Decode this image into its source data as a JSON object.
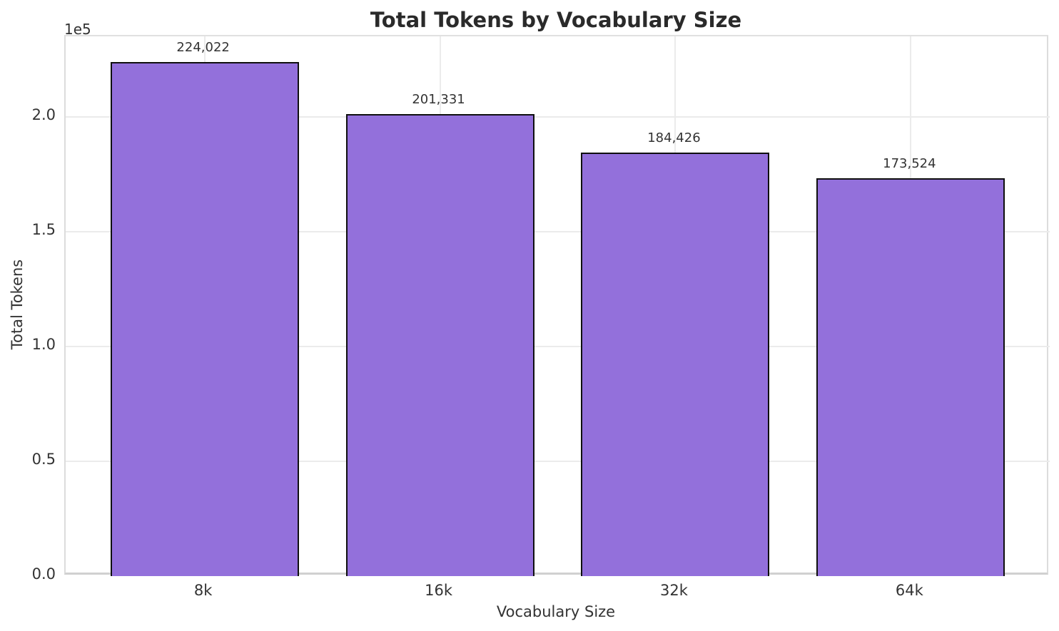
{
  "chart_data": {
    "type": "bar",
    "title": "Total Tokens by Vocabulary Size",
    "xlabel": "Vocabulary Size",
    "ylabel": "Total Tokens",
    "y_offset_label": "1e5",
    "categories": [
      "8k",
      "16k",
      "32k",
      "64k"
    ],
    "values": [
      224022,
      201331,
      184426,
      173524
    ],
    "value_labels": [
      "224,022",
      "201,331",
      "184,426",
      "173,524"
    ],
    "y_ticks": [
      0,
      50000,
      100000,
      150000,
      200000
    ],
    "y_tick_labels": [
      "0.0",
      "0.5",
      "1.0",
      "1.5",
      "2.0"
    ],
    "ylim": [
      0,
      235223
    ],
    "grid": true,
    "legend": "none",
    "colors": {
      "bar_fill": "#9370DB",
      "bar_edge": "#0f0f0f",
      "grid": "#ebebeb",
      "text": "#333333",
      "title_text": "#2a2a2a"
    }
  }
}
